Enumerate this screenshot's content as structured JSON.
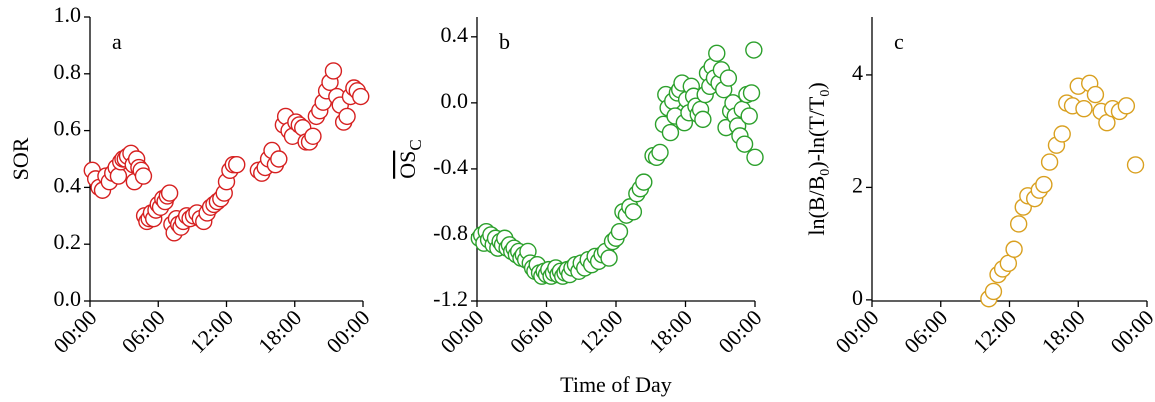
{
  "chart_data": [
    {
      "type": "scatter",
      "annotation": "a",
      "ylabel": "SOR",
      "color": "#d62020",
      "xlim": [
        0,
        24
      ],
      "xticks": [
        {
          "value": 0,
          "label": "00:00"
        },
        {
          "value": 6,
          "label": "06:00"
        },
        {
          "value": 12,
          "label": "12:00"
        },
        {
          "value": 18,
          "label": "18:00"
        },
        {
          "value": 24,
          "label": "00:00"
        }
      ],
      "ylim": [
        0,
        1
      ],
      "yticks": [
        {
          "value": 0,
          "label": "0.0"
        },
        0.2,
        0.4,
        0.6,
        0.8,
        {
          "value": 1,
          "label": "1.0"
        }
      ],
      "x": [
        0.2,
        0.5,
        0.8,
        1.1,
        1.4,
        1.7,
        2.0,
        2.3,
        2.5,
        2.7,
        2.9,
        3.1,
        3.3,
        3.6,
        3.8,
        3.9,
        4.1,
        4.3,
        4.5,
        4.7,
        4.8,
        5.0,
        5.2,
        5.4,
        5.6,
        5.8,
        6.0,
        6.2,
        6.4,
        6.6,
        6.8,
        7.0,
        7.2,
        7.4,
        7.6,
        7.8,
        8.0,
        8.2,
        8.5,
        8.8,
        9.1,
        9.4,
        9.7,
        10.0,
        10.3,
        10.6,
        10.9,
        11.2,
        11.5,
        11.8,
        12.0,
        12.3,
        12.6,
        12.9,
        14.8,
        15.1,
        15.4,
        15.7,
        16.0,
        16.3,
        16.6,
        17.0,
        17.2,
        17.5,
        17.8,
        18.1,
        18.4,
        18.7,
        19.0,
        19.3,
        19.6,
        19.9,
        20.2,
        20.5,
        20.8,
        21.1,
        21.4,
        21.7,
        22.0,
        22.3,
        22.6,
        22.9,
        23.2,
        23.5,
        23.8
      ],
      "values": [
        0.46,
        0.43,
        0.4,
        0.39,
        0.44,
        0.42,
        0.45,
        0.47,
        0.44,
        0.49,
        0.5,
        0.5,
        0.51,
        0.52,
        0.48,
        0.42,
        0.5,
        0.47,
        0.46,
        0.44,
        0.3,
        0.28,
        0.29,
        0.31,
        0.29,
        0.32,
        0.34,
        0.33,
        0.36,
        0.35,
        0.37,
        0.38,
        0.27,
        0.24,
        0.29,
        0.27,
        0.26,
        0.28,
        0.3,
        0.29,
        0.3,
        0.31,
        0.29,
        0.28,
        0.31,
        0.33,
        0.34,
        0.35,
        0.36,
        0.38,
        0.42,
        0.46,
        0.48,
        0.48,
        0.46,
        0.45,
        0.47,
        0.5,
        0.53,
        0.48,
        0.5,
        0.62,
        0.65,
        0.6,
        0.58,
        0.63,
        0.62,
        0.61,
        0.56,
        0.56,
        0.58,
        0.65,
        0.67,
        0.7,
        0.74,
        0.77,
        0.81,
        0.72,
        0.69,
        0.63,
        0.65,
        0.72,
        0.75,
        0.74,
        0.72
      ]
    },
    {
      "type": "scatter",
      "annotation": "b",
      "ylabel": "OSC",
      "xlabel": "Time of Day",
      "color": "#2ca02c",
      "xlim": [
        0,
        24
      ],
      "xticks": [
        {
          "value": 0,
          "label": "00:00"
        },
        {
          "value": 6,
          "label": "06:00"
        },
        {
          "value": 12,
          "label": "12:00"
        },
        {
          "value": 18,
          "label": "18:00"
        },
        {
          "value": 24,
          "label": "00:00"
        }
      ],
      "ylim": [
        -1.2,
        0.52
      ],
      "yticks": [
        -1.2,
        -0.8,
        -0.4,
        {
          "value": 0,
          "label": "0.0"
        },
        0.4
      ],
      "x": [
        0.2,
        0.4,
        0.6,
        0.8,
        1.0,
        1.2,
        1.4,
        1.6,
        1.8,
        2.0,
        2.2,
        2.4,
        2.6,
        2.8,
        3.0,
        3.2,
        3.4,
        3.6,
        3.8,
        4.0,
        4.2,
        4.4,
        4.6,
        4.8,
        5.0,
        5.2,
        5.4,
        5.6,
        5.8,
        6.0,
        6.2,
        6.4,
        6.6,
        6.8,
        7.0,
        7.2,
        7.4,
        7.6,
        7.8,
        8.0,
        8.2,
        8.5,
        8.8,
        9.0,
        9.3,
        9.6,
        9.9,
        10.2,
        10.5,
        10.8,
        11.1,
        11.4,
        11.7,
        12.0,
        12.3,
        12.6,
        12.9,
        13.2,
        13.5,
        13.8,
        14.1,
        14.4,
        15.2,
        15.5,
        15.8,
        16.1,
        16.3,
        16.5,
        16.7,
        16.9,
        17.1,
        17.3,
        17.5,
        17.7,
        17.9,
        18.1,
        18.3,
        18.5,
        18.7,
        18.9,
        19.1,
        19.3,
        19.5,
        19.7,
        19.9,
        20.1,
        20.3,
        20.5,
        20.7,
        20.9,
        21.1,
        21.3,
        21.5,
        21.7,
        21.9,
        22.1,
        22.3,
        22.5,
        22.7,
        22.9,
        23.1,
        23.3,
        23.5,
        23.7,
        23.9,
        24.0
      ],
      "values": [
        -0.82,
        -0.8,
        -0.85,
        -0.78,
        -0.83,
        -0.8,
        -0.86,
        -0.82,
        -0.88,
        -0.84,
        -0.86,
        -0.82,
        -0.88,
        -0.86,
        -0.9,
        -0.88,
        -0.92,
        -0.9,
        -0.94,
        -0.92,
        -0.95,
        -0.9,
        -0.97,
        -1.0,
        -1.02,
        -0.98,
        -1.03,
        -1.05,
        -1.02,
        -1.04,
        -1.01,
        -1.05,
        -1.03,
        -1.0,
        -1.04,
        -1.02,
        -1.05,
        -1.03,
        -1.01,
        -1.04,
        -1.0,
        -0.98,
        -1.02,
        -0.97,
        -1.0,
        -0.95,
        -0.98,
        -0.93,
        -0.96,
        -0.92,
        -0.9,
        -0.94,
        -0.84,
        -0.82,
        -0.78,
        -0.66,
        -0.68,
        -0.63,
        -0.66,
        -0.55,
        -0.52,
        -0.48,
        -0.32,
        -0.33,
        -0.3,
        -0.13,
        0.05,
        -0.03,
        -0.18,
        0.01,
        -0.08,
        0.06,
        0.08,
        0.12,
        -0.12,
        0.02,
        -0.06,
        0.1,
        0.04,
        -0.02,
        -0.07,
        -0.04,
        -0.1,
        0.05,
        0.18,
        0.1,
        0.22,
        0.15,
        0.3,
        0.12,
        0.2,
        0.08,
        -0.15,
        0.15,
        -0.05,
        0.0,
        -0.08,
        -0.14,
        -0.2,
        -0.04,
        -0.25,
        0.05,
        -0.08,
        0.06,
        0.32,
        -0.33
      ]
    },
    {
      "type": "scatter",
      "annotation": "c",
      "ylabel": "ln(B/B0)-ln(T/T0)",
      "color": "#d9a020",
      "xlim": [
        0,
        24
      ],
      "xticks": [
        {
          "value": 0,
          "label": "00:00"
        },
        {
          "value": 6,
          "label": "06:00"
        },
        {
          "value": 12,
          "label": "12:00"
        },
        {
          "value": 18,
          "label": "18:00"
        },
        {
          "value": 24,
          "label": "00:00"
        }
      ],
      "ylim": [
        -0.02,
        5.03
      ],
      "yticks": [
        0,
        2,
        4
      ],
      "x": [
        10.2,
        10.6,
        11.0,
        11.4,
        11.9,
        12.4,
        12.8,
        13.2,
        13.6,
        14.2,
        14.6,
        15.0,
        15.5,
        16.1,
        16.6,
        17.0,
        17.5,
        18.0,
        18.5,
        19.0,
        19.5,
        20.0,
        20.5,
        21.0,
        21.6,
        22.2,
        23.0
      ],
      "values": [
        0.02,
        0.15,
        0.45,
        0.55,
        0.65,
        0.9,
        1.35,
        1.65,
        1.85,
        1.8,
        1.95,
        2.05,
        2.45,
        2.75,
        2.95,
        3.5,
        3.45,
        3.8,
        3.4,
        3.85,
        3.65,
        3.35,
        3.15,
        3.4,
        3.35,
        3.45,
        2.4
      ]
    }
  ]
}
